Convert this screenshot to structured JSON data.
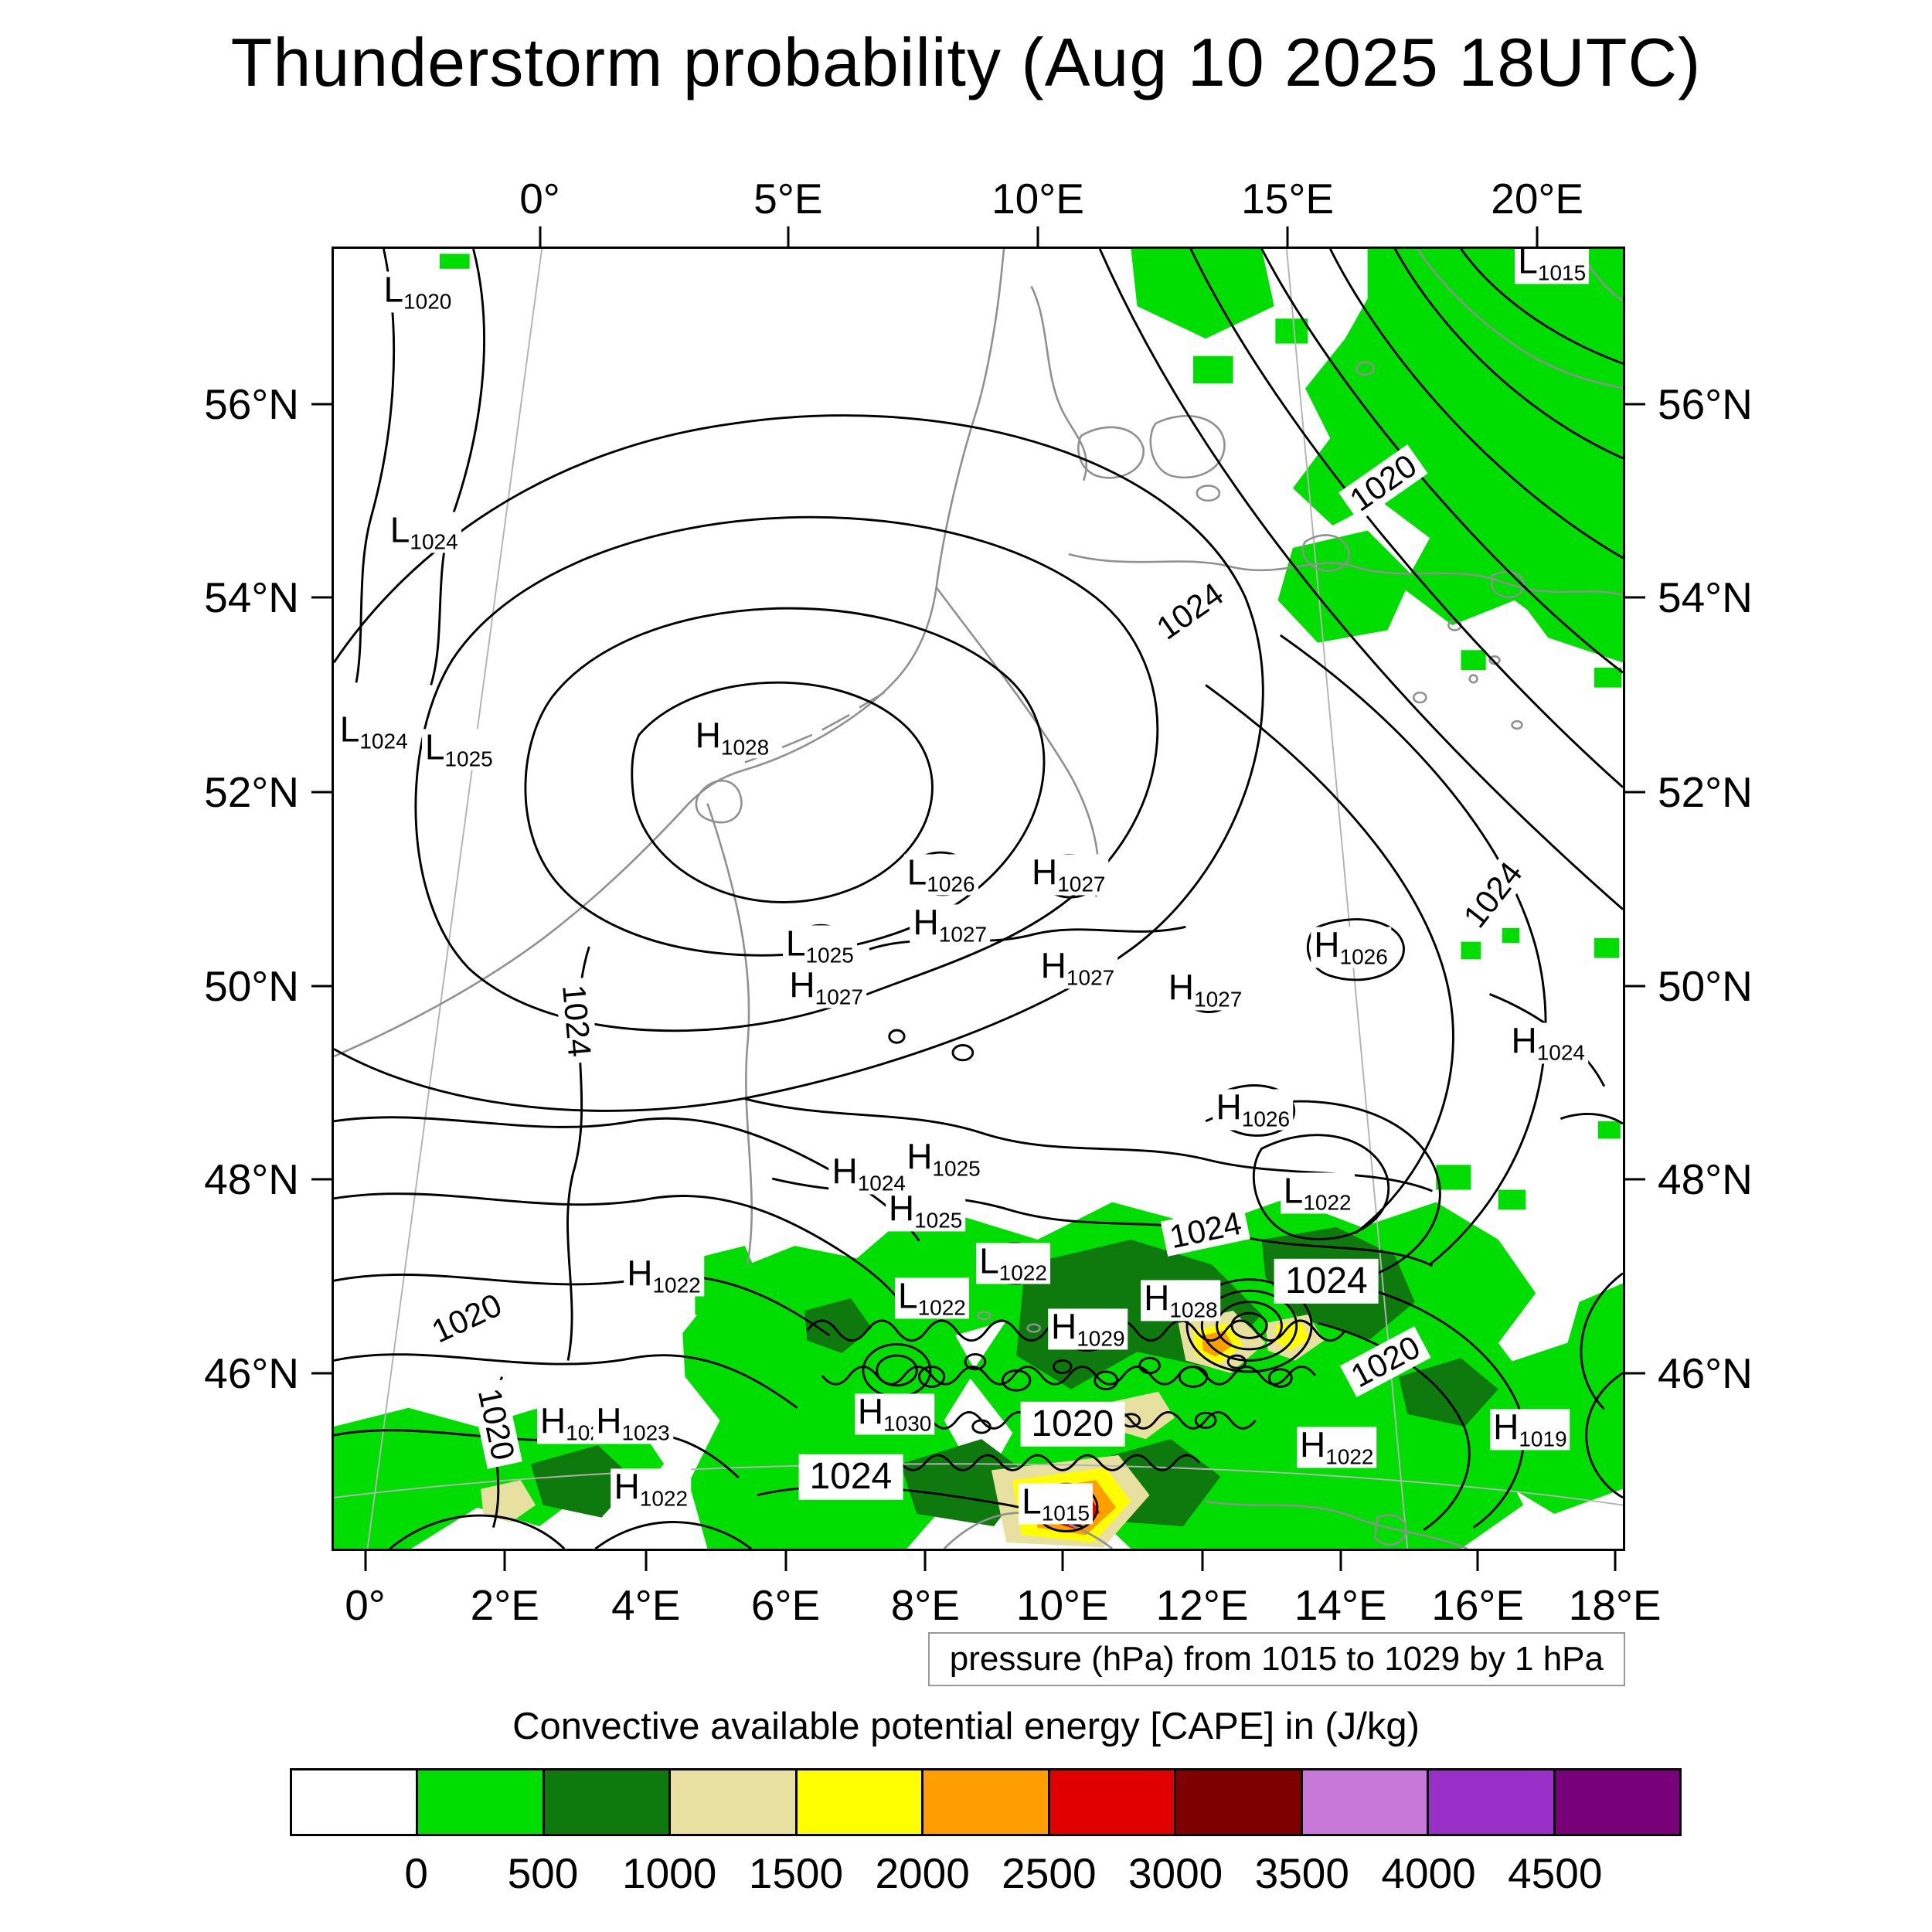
{
  "title": "Thunderstorm probability (Aug 10 2025 18UTC)",
  "caption": "pressure (hPa) from 1015 to 1029 by 1 hPa",
  "colorbar_title": "Convective available potential energy [CAPE] in (J/kg)",
  "chart_data": {
    "type": "heatmap",
    "title": "Thunderstorm probability (Aug 10 2025 18UTC)",
    "shaded_variable": "Convective available potential energy [CAPE] in (J/kg)",
    "cape_levels": [
      "0",
      "500",
      "1000",
      "1500",
      "2000",
      "2500",
      "3000",
      "3500",
      "4000",
      "4500"
    ],
    "cape_colors": [
      "#ffffff",
      "#00dd00",
      "#0e7a0e",
      "#e8e0a0",
      "#fffe00",
      "#ff9e00",
      "#e00000",
      "#7e0000",
      "#c878d8",
      "#9830c8",
      "#780078"
    ],
    "pressure_contours": {
      "unit": "hPa",
      "min": 1015,
      "max": 1029,
      "interval": 1
    },
    "axes": {
      "lon_top": [
        {
          "label": "0°",
          "pct": 16.1
        },
        {
          "label": "5°E",
          "pct": 35.3
        },
        {
          "label": "10°E",
          "pct": 54.6
        },
        {
          "label": "15°E",
          "pct": 73.9
        },
        {
          "label": "20°E",
          "pct": 93.2
        }
      ],
      "lon_bottom": [
        {
          "label": "0°",
          "pct": 2.6
        },
        {
          "label": "2°E",
          "pct": 13.4
        },
        {
          "label": "4°E",
          "pct": 24.3
        },
        {
          "label": "6°E",
          "pct": 35.1
        },
        {
          "label": "8°E",
          "pct": 45.9
        },
        {
          "label": "10°E",
          "pct": 56.5
        },
        {
          "label": "12°E",
          "pct": 67.3
        },
        {
          "label": "14°E",
          "pct": 78.0
        },
        {
          "label": "16°E",
          "pct": 88.6
        },
        {
          "label": "18°E",
          "pct": 99.2
        }
      ],
      "lat": [
        {
          "label": "56°N",
          "pct": 12.1
        },
        {
          "label": "54°N",
          "pct": 26.9
        },
        {
          "label": "52°N",
          "pct": 41.8
        },
        {
          "label": "50°N",
          "pct": 56.7
        },
        {
          "label": "48°N",
          "pct": 71.5
        },
        {
          "label": "46°N",
          "pct": 86.4
        }
      ]
    },
    "pressure_centers": [
      {
        "t": "L",
        "v": "1020",
        "x": 6.5,
        "y": 3.4
      },
      {
        "t": "L",
        "v": "1015",
        "x": 94.5,
        "y": 1.2
      },
      {
        "t": "L",
        "v": "1024",
        "x": 7.0,
        "y": 21.9
      },
      {
        "t": "L",
        "v": "1024",
        "x": 3.1,
        "y": 37.2
      },
      {
        "t": "L",
        "v": "1025",
        "x": 9.7,
        "y": 38.6
      },
      {
        "t": "H",
        "v": "1028",
        "x": 30.9,
        "y": 37.7
      },
      {
        "t": "L",
        "v": "1026",
        "x": 47.1,
        "y": 48.2
      },
      {
        "t": "H",
        "v": "1027",
        "x": 57.0,
        "y": 48.2
      },
      {
        "t": "H",
        "v": "1027",
        "x": 47.8,
        "y": 52.1
      },
      {
        "t": "L",
        "v": "1025",
        "x": 37.7,
        "y": 53.7
      },
      {
        "t": "H",
        "v": "1027",
        "x": 57.7,
        "y": 55.4
      },
      {
        "t": "H",
        "v": "1026",
        "x": 78.9,
        "y": 53.8
      },
      {
        "t": "H",
        "v": "1027",
        "x": 38.2,
        "y": 56.9
      },
      {
        "t": "H",
        "v": "1027",
        "x": 67.6,
        "y": 57.1
      },
      {
        "t": "H",
        "v": "1024",
        "x": 94.2,
        "y": 61.2
      },
      {
        "t": "H",
        "v": "1026",
        "x": 71.3,
        "y": 66.3
      },
      {
        "t": "H",
        "v": "1025",
        "x": 47.3,
        "y": 70.1
      },
      {
        "t": "H",
        "v": "1024",
        "x": 41.5,
        "y": 71.2
      },
      {
        "t": "H",
        "v": "1025",
        "x": 45.9,
        "y": 74.1
      },
      {
        "t": "L",
        "v": "1022",
        "x": 76.3,
        "y": 72.7
      },
      {
        "t": "H",
        "v": "1022",
        "x": 25.6,
        "y": 79.1
      },
      {
        "t": "L",
        "v": "1022",
        "x": 52.7,
        "y": 78.1
      },
      {
        "t": "L",
        "v": "1022",
        "x": 46.4,
        "y": 80.8
      },
      {
        "t": "H",
        "v": "1029",
        "x": 58.5,
        "y": 83.2
      },
      {
        "t": "H",
        "v": "1028",
        "x": 65.7,
        "y": 81.0
      },
      {
        "t": "H",
        "v": "102",
        "x": 18.4,
        "y": 90.4
      },
      {
        "t": "H",
        "v": "1023",
        "x": 23.2,
        "y": 90.4
      },
      {
        "t": "H",
        "v": "1030",
        "x": 43.5,
        "y": 89.7
      },
      {
        "t": "H",
        "v": "1022",
        "x": 24.6,
        "y": 95.5
      },
      {
        "t": "L",
        "v": "1015",
        "x": 56.0,
        "y": 96.6
      },
      {
        "t": "H",
        "v": "1022",
        "x": 77.8,
        "y": 92.3
      },
      {
        "t": "H",
        "v": "1019",
        "x": 92.8,
        "y": 90.9
      }
    ],
    "contour_labels": [
      {
        "text": "1020",
        "x": 81.4,
        "y": 18.0,
        "rot": -35,
        "big": false
      },
      {
        "text": "1024",
        "x": 66.4,
        "y": 27.9,
        "rot": -35,
        "big": false
      },
      {
        "text": "1024",
        "x": 89.9,
        "y": 49.7,
        "rot": -52,
        "big": false
      },
      {
        "text": "1024",
        "x": 18.8,
        "y": 59.4,
        "rot": 85,
        "big": false
      },
      {
        "text": "1020",
        "x": 10.3,
        "y": 82.3,
        "rot": -25,
        "big": false
      },
      {
        "text": "1020",
        "x": 12.6,
        "y": 90.4,
        "rot": 78,
        "big": false
      },
      {
        "text": "1024",
        "x": 67.6,
        "y": 75.5,
        "rot": -12,
        "big": false
      },
      {
        "text": "1024",
        "x": 77.0,
        "y": 79.4,
        "rot": 0,
        "big": true
      },
      {
        "text": "1020",
        "x": 81.6,
        "y": 85.6,
        "rot": -28,
        "big": false
      },
      {
        "text": "1020",
        "x": 57.3,
        "y": 90.4,
        "rot": 0,
        "big": true
      },
      {
        "text": "1024",
        "x": 40.1,
        "y": 94.5,
        "rot": 0,
        "big": true
      }
    ]
  }
}
